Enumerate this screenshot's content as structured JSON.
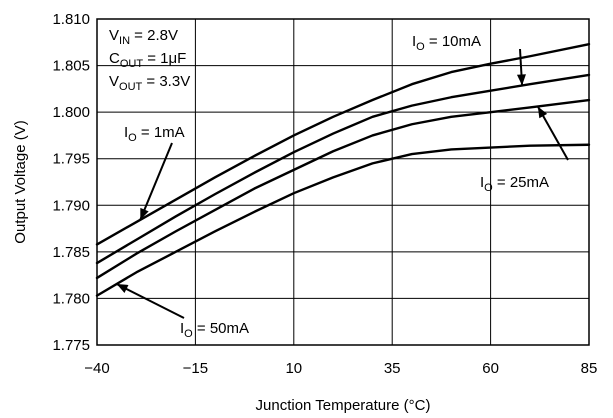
{
  "chart_data": {
    "type": "line",
    "xlabel": "Junction Temperature (°C)",
    "ylabel": "Output Voltage (V)",
    "xlim": [
      -40,
      85
    ],
    "ylim": [
      1.775,
      1.81
    ],
    "x_ticks": [
      "−40",
      "−15",
      "10",
      "35",
      "60",
      "85"
    ],
    "x_tick_values": [
      -40,
      -15,
      10,
      35,
      60,
      85
    ],
    "y_ticks": [
      "1.775",
      "1.780",
      "1.785",
      "1.790",
      "1.795",
      "1.800",
      "1.805",
      "1.810"
    ],
    "y_tick_values": [
      1.775,
      1.78,
      1.785,
      1.79,
      1.795,
      1.8,
      1.805,
      1.81
    ],
    "grid": true,
    "conditions": [
      {
        "symbol": "V",
        "sub": "IN",
        "rest": " = 2.8V"
      },
      {
        "symbol": "C",
        "sub": "OUT",
        "rest": " = 1μF"
      },
      {
        "symbol": "V",
        "sub": "OUT",
        "rest": " = 3.3V"
      }
    ],
    "series": [
      {
        "name": "I_O = 1mA",
        "x": [
          -40,
          -30,
          -20,
          -10,
          0,
          10,
          20,
          30,
          40,
          50,
          60,
          70,
          85
        ],
        "y": [
          1.7858,
          1.7882,
          1.7906,
          1.793,
          1.7953,
          1.7975,
          1.7995,
          1.8013,
          1.803,
          1.8043,
          1.8052,
          1.806,
          1.8073
        ]
      },
      {
        "name": "I_O = 10mA",
        "x": [
          -40,
          -30,
          -20,
          -10,
          0,
          10,
          20,
          30,
          40,
          50,
          60,
          70,
          85
        ],
        "y": [
          1.7838,
          1.7863,
          1.7888,
          1.7912,
          1.7935,
          1.7957,
          1.7977,
          1.7995,
          1.8007,
          1.8016,
          1.8023,
          1.803,
          1.804
        ]
      },
      {
        "name": "I_O = 25mA",
        "x": [
          -40,
          -30,
          -20,
          -10,
          0,
          10,
          20,
          30,
          40,
          50,
          60,
          70,
          85
        ],
        "y": [
          1.7822,
          1.7848,
          1.7872,
          1.7895,
          1.7918,
          1.7938,
          1.7958,
          1.7975,
          1.7987,
          1.7995,
          1.8,
          1.8005,
          1.8013
        ]
      },
      {
        "name": "I_O = 50mA",
        "x": [
          -40,
          -30,
          -20,
          -10,
          0,
          10,
          20,
          30,
          40,
          50,
          60,
          70,
          85
        ],
        "y": [
          1.7803,
          1.7828,
          1.785,
          1.7872,
          1.7893,
          1.7913,
          1.793,
          1.7945,
          1.7955,
          1.796,
          1.7962,
          1.7964,
          1.7965
        ]
      }
    ],
    "annotations": [
      {
        "series": 0,
        "symbol": "I",
        "sub": "O",
        "rest": " = 1mA"
      },
      {
        "series": 1,
        "symbol": "I",
        "sub": "O",
        "rest": " = 10mA"
      },
      {
        "series": 2,
        "symbol": "I",
        "sub": "O",
        "rest": " = 25mA"
      },
      {
        "series": 3,
        "symbol": "I",
        "sub": "O",
        "rest": " = 50mA"
      }
    ]
  }
}
